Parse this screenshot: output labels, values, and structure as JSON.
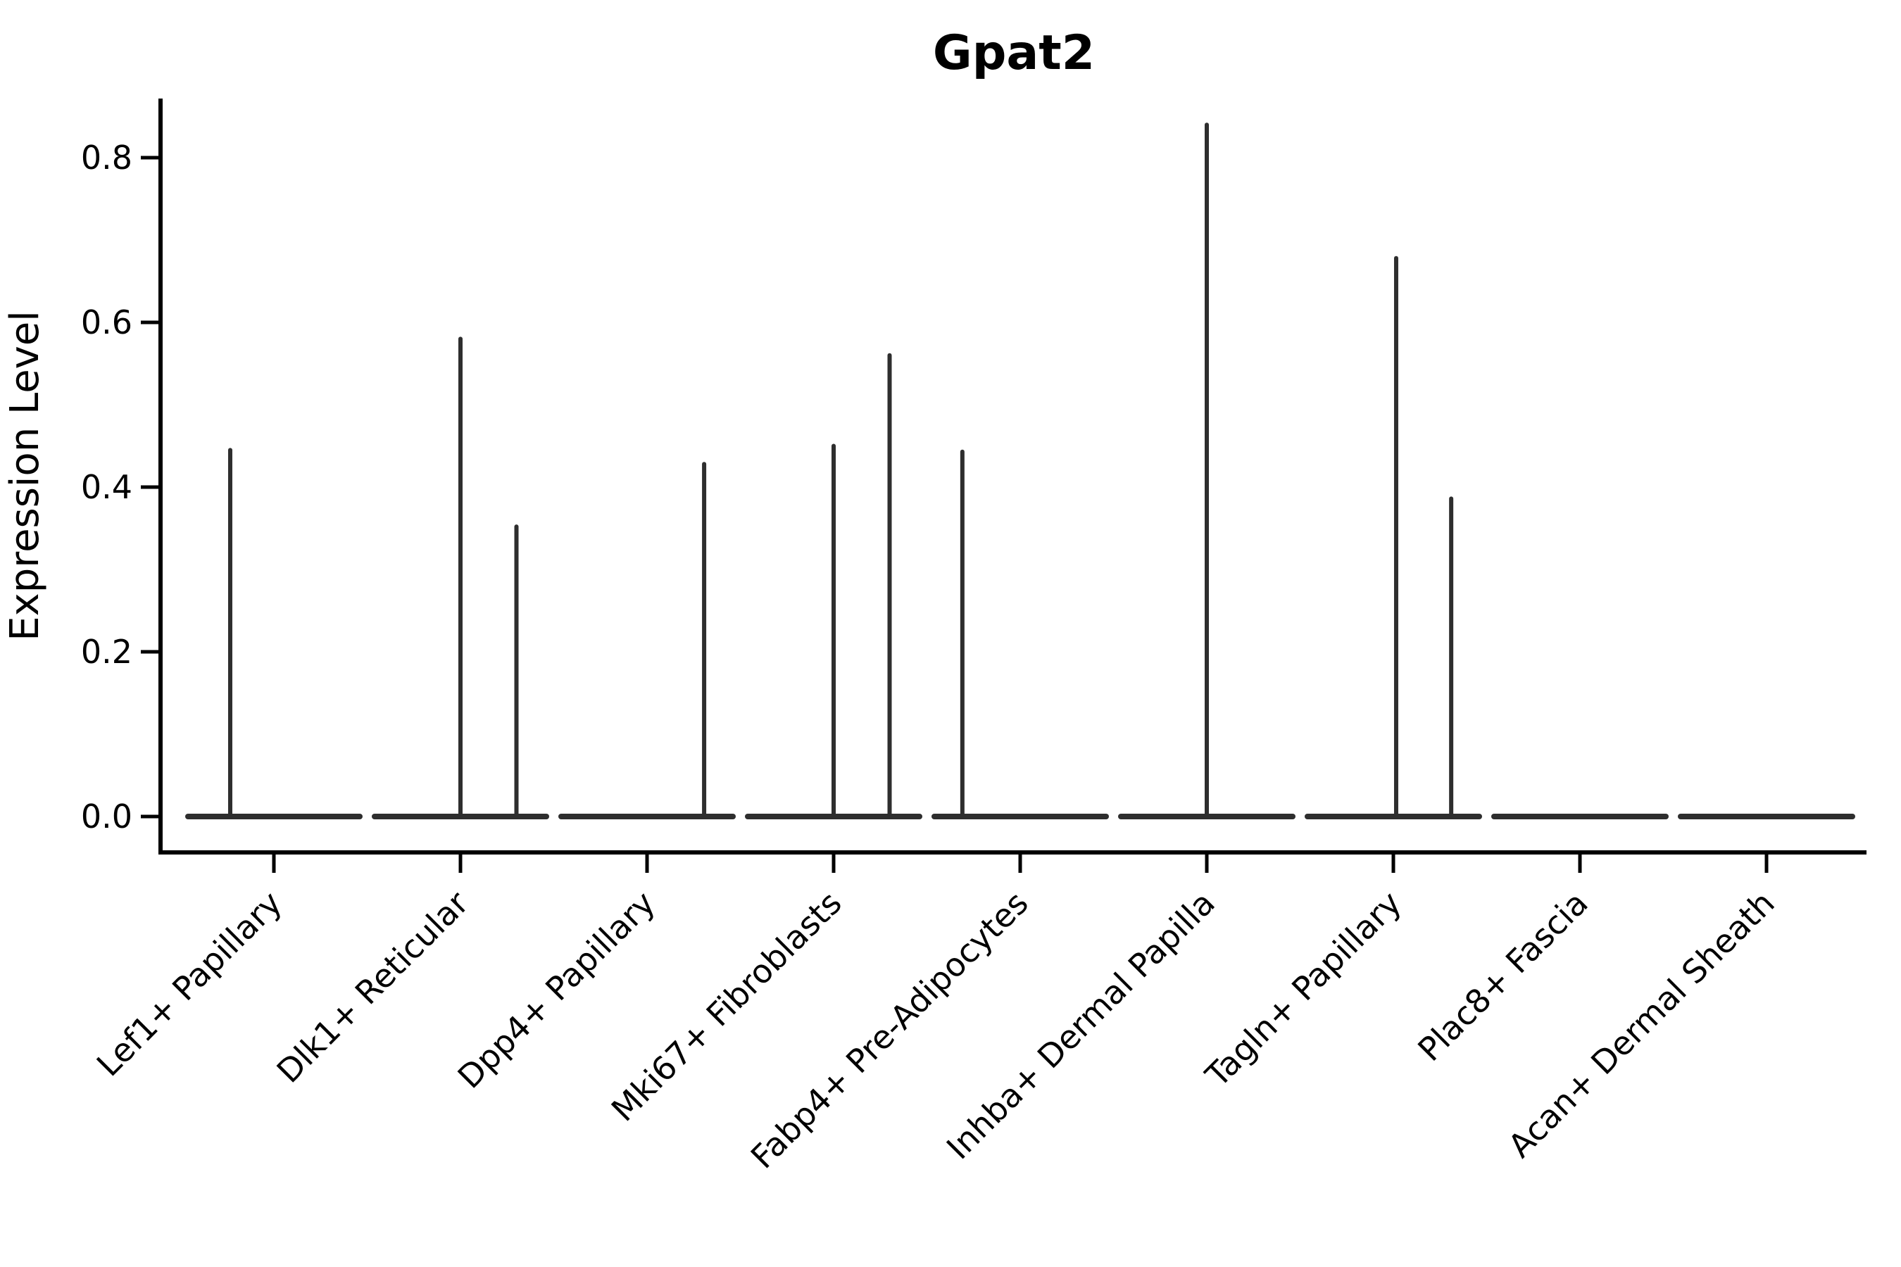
{
  "figure": {
    "background": "#ffffff"
  },
  "chart_data": {
    "type": "violin",
    "title": "Gpat2",
    "xlabel": "",
    "ylabel": "Expression Level",
    "ylim": [
      -0.05,
      0.87
    ],
    "yticks": [
      0,
      0.2,
      0.4,
      0.6,
      0.8
    ],
    "ytick_labels": [
      "0.0",
      "0.2",
      "0.4",
      "0.6",
      "0.8"
    ],
    "grid": false,
    "legend": null,
    "categories": [
      "Lef1+ Papillary",
      "Dlk1+ Reticular",
      "Dpp4+ Papillary",
      "Mki67+ Fibroblasts",
      "Fabp4+ Pre-Adipocytes",
      "Inhba+ Dermal Papilla",
      "Tagln+ Papillary",
      "Plac8+ Fascia",
      "Acan+ Dermal Sheath"
    ],
    "values": [
      0.445,
      0.58,
      0.428,
      0.56,
      0.443,
      0.84,
      0.678,
      0.0,
      0.0
    ],
    "series": [
      {
        "category": "Lef1+ Papillary",
        "max_expression": 0.445,
        "baseline_at_zero": true,
        "violins": [
          {
            "peak": 0.445,
            "offset_frac": -0.234
          }
        ]
      },
      {
        "category": "Dlk1+ Reticular",
        "max_expression": 0.58,
        "baseline_at_zero": true,
        "violins": [
          {
            "peak": 0.58,
            "offset_frac": 0.0
          },
          {
            "peak": 0.352,
            "offset_frac": 0.3
          }
        ]
      },
      {
        "category": "Dpp4+ Papillary",
        "max_expression": 0.428,
        "baseline_at_zero": true,
        "violins": [
          {
            "peak": 0.428,
            "offset_frac": 0.306
          }
        ]
      },
      {
        "category": "Mki67+ Fibroblasts",
        "max_expression": 0.56,
        "baseline_at_zero": true,
        "violins": [
          {
            "peak": 0.45,
            "offset_frac": 0.0
          },
          {
            "peak": 0.56,
            "offset_frac": 0.3
          }
        ]
      },
      {
        "category": "Fabp4+ Pre-Adipocytes",
        "max_expression": 0.443,
        "baseline_at_zero": true,
        "violins": [
          {
            "peak": 0.443,
            "offset_frac": -0.31
          }
        ]
      },
      {
        "category": "Inhba+ Dermal Papilla",
        "max_expression": 0.84,
        "baseline_at_zero": true,
        "violins": [
          {
            "peak": 0.84,
            "offset_frac": 0.0
          }
        ]
      },
      {
        "category": "Tagln+ Papillary",
        "max_expression": 0.678,
        "baseline_at_zero": true,
        "violins": [
          {
            "peak": 0.678,
            "offset_frac": 0.015
          },
          {
            "peak": 0.386,
            "offset_frac": 0.31
          }
        ]
      },
      {
        "category": "Plac8+ Fascia",
        "max_expression": 0.0,
        "baseline_at_zero": true,
        "violins": []
      },
      {
        "category": "Acan+ Dermal Sheath",
        "max_expression": 0.0,
        "baseline_at_zero": true,
        "violins": []
      }
    ],
    "colors": {
      "violin": "#2e2e2e",
      "axis": "#000000",
      "text": "#000000",
      "background": "#ffffff"
    }
  }
}
